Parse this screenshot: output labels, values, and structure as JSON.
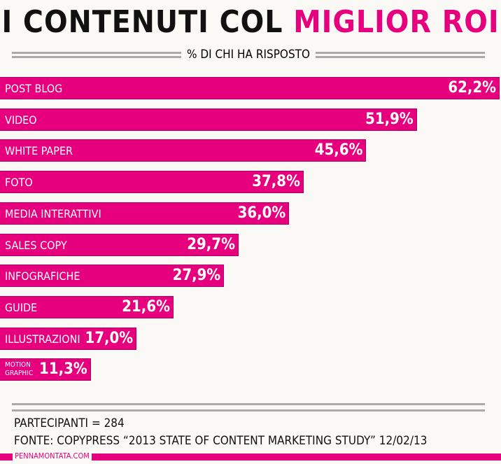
{
  "header": {
    "title_part1": "I CONTENUTI COL",
    "title_part2": "MIGLIOR ROI",
    "subtitle": "% DI CHI HA RISPOSTO"
  },
  "chart_data": {
    "type": "bar",
    "orientation": "horizontal",
    "title": "I CONTENUTI COL MIGLIOR ROI",
    "subtitle": "% DI CHI HA RISPOSTO",
    "categories": [
      "POST BLOG",
      "VIDEO",
      "WHITE PAPER",
      "FOTO",
      "MEDIA INTERATTIVI",
      "SALES COPY",
      "INFOGRAFICHE",
      "GUIDE",
      "ILLUSTRAZIONI",
      "MOTION GRAPHIC"
    ],
    "values": [
      62.2,
      51.9,
      45.6,
      37.8,
      36.0,
      29.7,
      27.9,
      21.6,
      17.0,
      11.3
    ],
    "labels": [
      "62,2%",
      "51,9%",
      "45,6%",
      "37,8%",
      "36,0%",
      "29,7%",
      "27,9%",
      "21,6%",
      "17,0%",
      "11,3%"
    ],
    "unit": "%",
    "bar_color": "#e6007e"
  },
  "footer": {
    "participants": "PARTECIPANTI = 284",
    "source": "FONTE: COPYPRESS “2013 STATE OF CONTENT MARKETING STUDY” 12/02/13",
    "brand": "PENNAMONTATA.COM"
  }
}
